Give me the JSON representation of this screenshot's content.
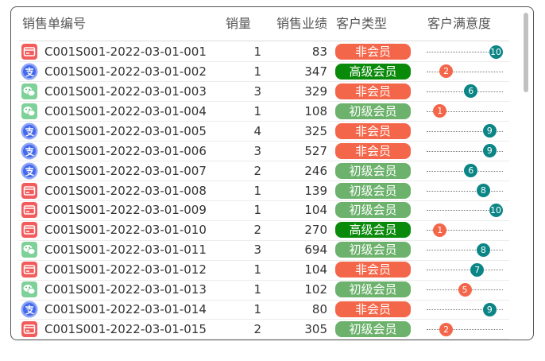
{
  "table": {
    "columns": [
      "销售单编号",
      "销量",
      "销售业绩",
      "客户类型",
      "客户满意度"
    ],
    "satisfaction_range": [
      0,
      10
    ],
    "rows": [
      {
        "id": "C001S001-2022-03-01-001",
        "qty": 1,
        "sales": 83,
        "type": "非会员",
        "type_color": "#f4664a",
        "satisfaction": 10,
        "satisfaction_color": "#0b8585"
      },
      {
        "id": "C001S001-2022-03-01-002",
        "qty": 1,
        "sales": 347,
        "type": "高级会员",
        "type_color": "#0a8a0a",
        "satisfaction": 2,
        "satisfaction_color": "#f4664a"
      },
      {
        "id": "C001S001-2022-03-01-003",
        "qty": 3,
        "sales": 329,
        "type": "非会员",
        "type_color": "#f4664a",
        "satisfaction": 6,
        "satisfaction_color": "#0b8585"
      },
      {
        "id": "C001S001-2022-03-01-004",
        "qty": 1,
        "sales": 108,
        "type": "初级会员",
        "type_color": "#6cb26c",
        "satisfaction": 1,
        "satisfaction_color": "#f4664a"
      },
      {
        "id": "C001S001-2022-03-01-005",
        "qty": 4,
        "sales": 325,
        "type": "非会员",
        "type_color": "#f4664a",
        "satisfaction": 9,
        "satisfaction_color": "#0b8585"
      },
      {
        "id": "C001S001-2022-03-01-006",
        "qty": 3,
        "sales": 527,
        "type": "非会员",
        "type_color": "#f4664a",
        "satisfaction": 9,
        "satisfaction_color": "#0b8585"
      },
      {
        "id": "C001S001-2022-03-01-007",
        "qty": 2,
        "sales": 246,
        "type": "初级会员",
        "type_color": "#6cb26c",
        "satisfaction": 6,
        "satisfaction_color": "#0b8585"
      },
      {
        "id": "C001S001-2022-03-01-008",
        "qty": 1,
        "sales": 139,
        "type": "初级会员",
        "type_color": "#6cb26c",
        "satisfaction": 8,
        "satisfaction_color": "#0b8585"
      },
      {
        "id": "C001S001-2022-03-01-009",
        "qty": 1,
        "sales": 104,
        "type": "初级会员",
        "type_color": "#6cb26c",
        "satisfaction": 10,
        "satisfaction_color": "#0b8585"
      },
      {
        "id": "C001S001-2022-03-01-010",
        "qty": 2,
        "sales": 270,
        "type": "高级会员",
        "type_color": "#0a8a0a",
        "satisfaction": 1,
        "satisfaction_color": "#f4664a"
      },
      {
        "id": "C001S001-2022-03-01-011",
        "qty": 3,
        "sales": 694,
        "type": "初级会员",
        "type_color": "#6cb26c",
        "satisfaction": 8,
        "satisfaction_color": "#0b8585"
      },
      {
        "id": "C001S001-2022-03-01-012",
        "qty": 1,
        "sales": 104,
        "type": "非会员",
        "type_color": "#f4664a",
        "satisfaction": 7,
        "satisfaction_color": "#0b8585"
      },
      {
        "id": "C001S001-2022-03-01-013",
        "qty": 1,
        "sales": 102,
        "type": "初级会员",
        "type_color": "#6cb26c",
        "satisfaction": 5,
        "satisfaction_color": "#f4664a"
      },
      {
        "id": "C001S001-2022-03-01-014",
        "qty": 1,
        "sales": 80,
        "type": "非会员",
        "type_color": "#f4664a",
        "satisfaction": 9,
        "satisfaction_color": "#0b8585"
      },
      {
        "id": "C001S001-2022-03-01-015",
        "qty": 2,
        "sales": 305,
        "type": "初级会员",
        "type_color": "#6cb26c",
        "satisfaction": 2,
        "satisfaction_color": "#f4664a"
      }
    ]
  }
}
